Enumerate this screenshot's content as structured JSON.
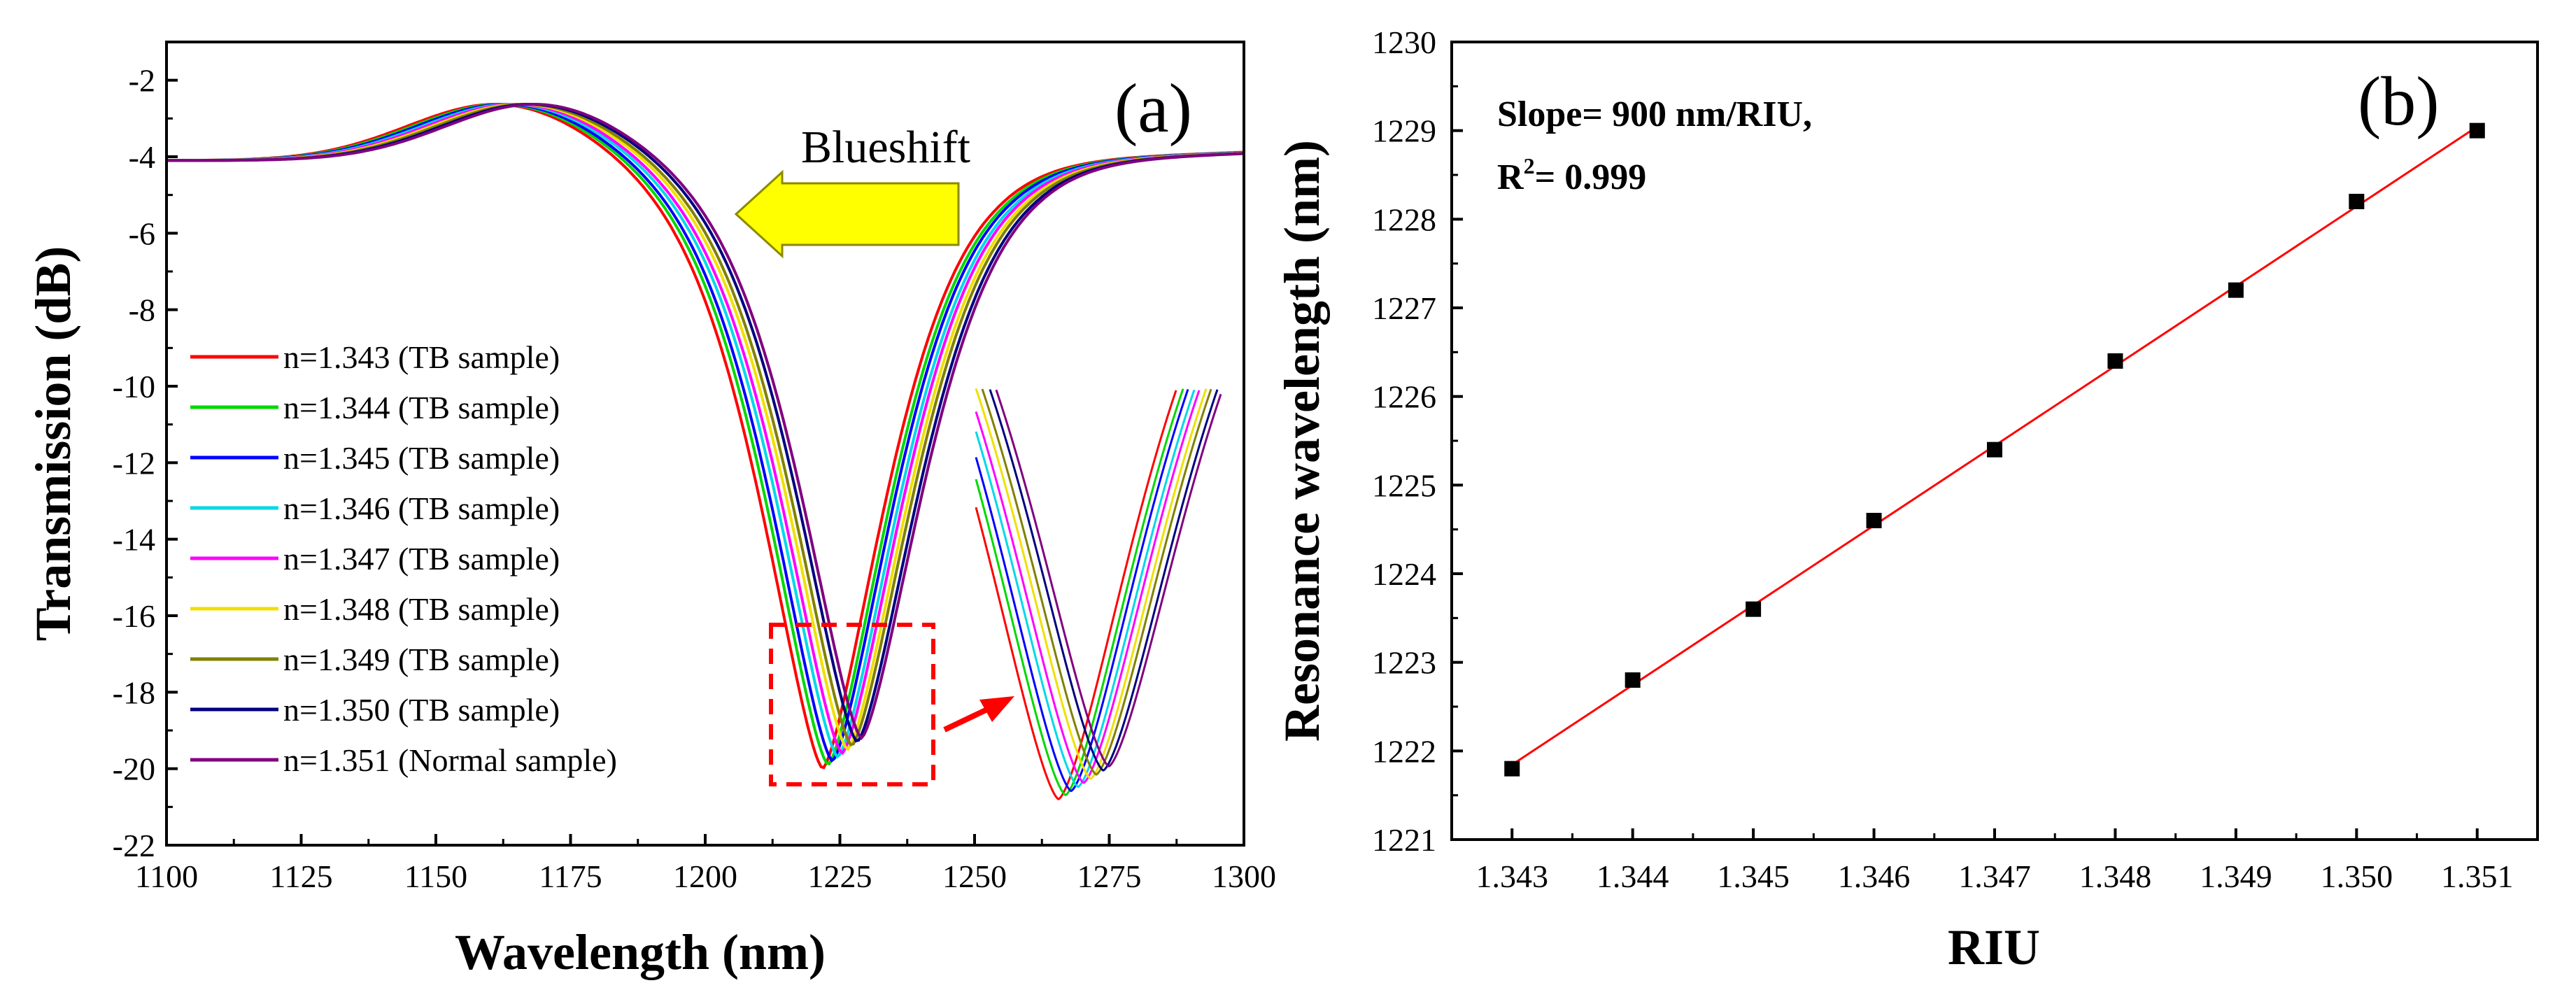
{
  "chart_data": [
    {
      "type": "line",
      "panel_label": "(a)",
      "xlabel": "Wavelength (nm)",
      "ylabel": "Transmission (dB)",
      "xlim": [
        1100,
        1300
      ],
      "ylim": [
        -22,
        -1
      ],
      "xticks": [
        1100,
        1125,
        1150,
        1175,
        1200,
        1225,
        1250,
        1275,
        1300
      ],
      "yticks": [
        -2,
        -4,
        -6,
        -8,
        -10,
        -12,
        -14,
        -16,
        -18,
        -20,
        -22
      ],
      "annotation_arrow_text": "Blueshift",
      "series": [
        {
          "name": "n=1.343 (TB sample)",
          "color": "#ff0000",
          "resonance_wavelength": 1221.8,
          "min_transmission": -20.0
        },
        {
          "name": "n=1.344 (TB sample)",
          "color": "#00d800",
          "resonance_wavelength": 1222.8,
          "min_transmission": -19.9
        },
        {
          "name": "n=1.345 (TB sample)",
          "color": "#0000ff",
          "resonance_wavelength": 1223.6,
          "min_transmission": -19.8
        },
        {
          "name": "n=1.346 (TB sample)",
          "color": "#00d8e8",
          "resonance_wavelength": 1224.6,
          "min_transmission": -19.7
        },
        {
          "name": "n=1.347 (TB sample)",
          "color": "#ff00ff",
          "resonance_wavelength": 1225.4,
          "min_transmission": -19.6
        },
        {
          "name": "n=1.348 (TB sample)",
          "color": "#f0e000",
          "resonance_wavelength": 1226.4,
          "min_transmission": -19.5
        },
        {
          "name": "n=1.349 (TB sample)",
          "color": "#808000",
          "resonance_wavelength": 1227.2,
          "min_transmission": -19.4
        },
        {
          "name": "n=1.350 (TB sample)",
          "color": "#000080",
          "resonance_wavelength": 1228.2,
          "min_transmission": -19.3
        },
        {
          "name": "n=1.351 (Normal sample)",
          "color": "#800080",
          "resonance_wavelength": 1229.0,
          "min_transmission": -19.2
        }
      ]
    },
    {
      "type": "scatter",
      "panel_label": "(b)",
      "xlabel": "RIU",
      "ylabel": "Resonance wavelength (nm)",
      "xlim": [
        1.3425,
        1.3515
      ],
      "ylim": [
        1221,
        1230
      ],
      "xticks": [
        "1.343",
        "1.344",
        "1.345",
        "1.346",
        "1.347",
        "1.348",
        "1.349",
        "1.350",
        "1.351"
      ],
      "yticks": [
        1221,
        1222,
        1223,
        1224,
        1225,
        1226,
        1227,
        1228,
        1229,
        1230
      ],
      "x": [
        1.343,
        1.344,
        1.345,
        1.346,
        1.347,
        1.348,
        1.349,
        1.35,
        1.351
      ],
      "y": [
        1221.8,
        1222.8,
        1223.6,
        1224.6,
        1225.4,
        1226.4,
        1227.2,
        1228.2,
        1229.0
      ],
      "fit": {
        "slope_text": "Slope= 900 nm/RIU,",
        "r2_prefix": "R",
        "r2_sup": "2",
        "r2_suffix": "= 0.999",
        "color": "#ff0000"
      },
      "marker_color": "#000000"
    }
  ]
}
